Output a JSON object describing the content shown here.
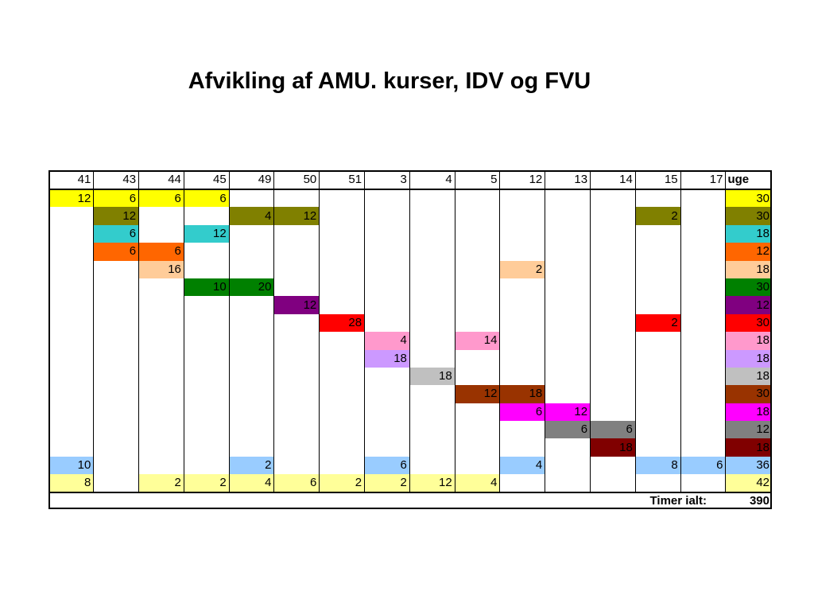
{
  "title": "Afvikling af AMU. kurser, IDV og FVU",
  "table": {
    "headers": [
      "41",
      "43",
      "44",
      "45",
      "49",
      "50",
      "51",
      "3",
      "4",
      "5",
      "12",
      "13",
      "14",
      "15",
      "17",
      "uge"
    ],
    "rows": [
      {
        "color": "#ffff00",
        "cells": {
          "0": "12",
          "1": "6",
          "2": "6",
          "3": "6"
        },
        "uge": "30"
      },
      {
        "color": "#808000",
        "cells": {
          "1": "12",
          "4": "4",
          "5": "12",
          "13": "2"
        },
        "uge": "30"
      },
      {
        "color": "#33cccc",
        "cells": {
          "1": "6",
          "3": "12"
        },
        "uge": "18"
      },
      {
        "color": "#ff6600",
        "cells": {
          "1": "6",
          "2": "6"
        },
        "uge": "12"
      },
      {
        "color": "#ffcc99",
        "cells": {
          "2": "16",
          "10": "2"
        },
        "uge": "18"
      },
      {
        "color": "#008000",
        "cells": {
          "3": "10",
          "4": "20"
        },
        "uge": "30"
      },
      {
        "color": "#800080",
        "cells": {
          "5": "12"
        },
        "uge": "12"
      },
      {
        "color": "#ff0000",
        "cells": {
          "6": "28",
          "13": "2"
        },
        "uge": "30"
      },
      {
        "color": "#ff99cc",
        "cells": {
          "7": "4",
          "9": "14"
        },
        "uge": "18"
      },
      {
        "color": "#cc99ff",
        "cells": {
          "7": "18"
        },
        "uge": "18"
      },
      {
        "color": "#c0c0c0",
        "cells": {
          "8": "18"
        },
        "uge": "18"
      },
      {
        "color": "#993300",
        "cells": {
          "9": "12",
          "10": "18"
        },
        "uge": "30"
      },
      {
        "color": "#ff00ff",
        "cells": {
          "10": "6",
          "11": "12"
        },
        "uge": "18"
      },
      {
        "color": "#808080",
        "cells": {
          "11": "6",
          "12": "6"
        },
        "uge": "12"
      },
      {
        "color": "#800000",
        "cells": {
          "12": "18"
        },
        "uge": "18"
      },
      {
        "color": "#99ccff",
        "cells": {
          "0": "10",
          "4": "2",
          "7": "6",
          "10": "4",
          "13": "8",
          "14": "6"
        },
        "uge": "36"
      },
      {
        "color": "#ffff99",
        "cells": {
          "0": "8",
          "2": "2",
          "3": "2",
          "4": "4",
          "5": "6",
          "6": "2",
          "7": "2",
          "8": "12",
          "9": "4"
        },
        "uge": "42"
      }
    ],
    "total_label": "Timer ialt:",
    "total_value": "390"
  }
}
